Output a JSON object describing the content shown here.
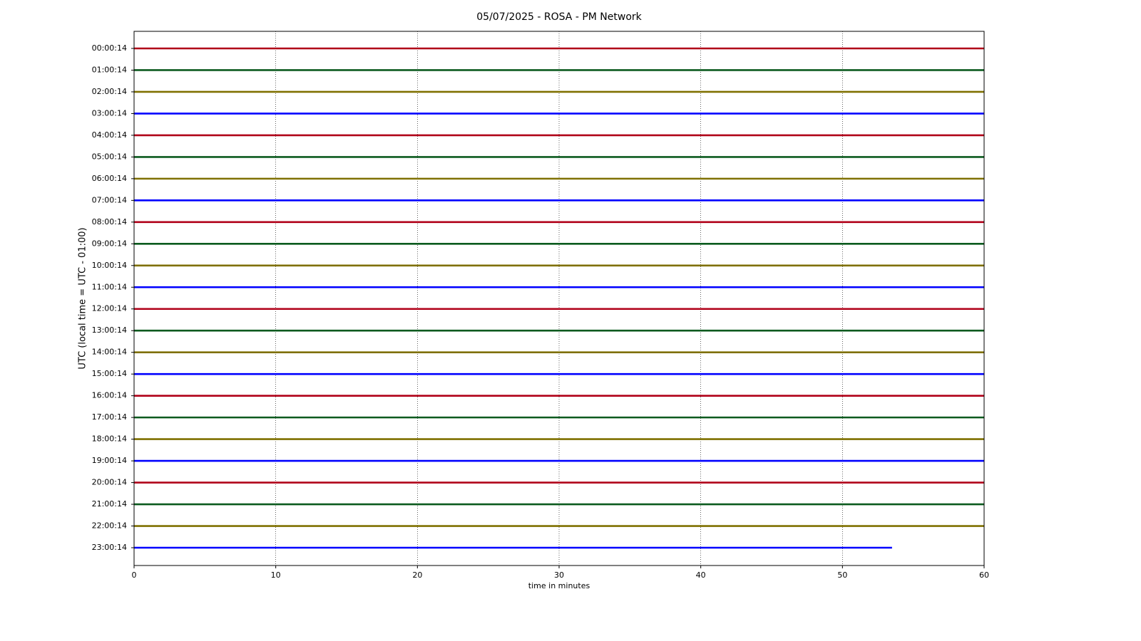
{
  "chart_data": {
    "type": "dayplot",
    "title": "05/07/2025 - ROSA - PM Network",
    "x_label": "time in minutes",
    "y_label": "UTC (local time = UTC - 01:00)",
    "xlim": [
      0,
      60
    ],
    "xticks": [
      0,
      10,
      20,
      30,
      40,
      50,
      60
    ],
    "grid": true,
    "traces": [
      {
        "label": "00:00:14",
        "color": "#b00018",
        "x": [
          0,
          60
        ]
      },
      {
        "label": "01:00:14",
        "color": "#0b5a1e",
        "x": [
          0,
          60
        ]
      },
      {
        "label": "02:00:14",
        "color": "#7f7000",
        "x": [
          0,
          60
        ]
      },
      {
        "label": "03:00:14",
        "color": "#0000ff",
        "x": [
          0,
          60
        ]
      },
      {
        "label": "04:00:14",
        "color": "#b00018",
        "x": [
          0,
          60
        ]
      },
      {
        "label": "05:00:14",
        "color": "#0b5a1e",
        "x": [
          0,
          60
        ]
      },
      {
        "label": "06:00:14",
        "color": "#7f7000",
        "x": [
          0,
          60
        ]
      },
      {
        "label": "07:00:14",
        "color": "#0000ff",
        "x": [
          0,
          60
        ]
      },
      {
        "label": "08:00:14",
        "color": "#b00018",
        "x": [
          0,
          60
        ]
      },
      {
        "label": "09:00:14",
        "color": "#0b5a1e",
        "x": [
          0,
          60
        ]
      },
      {
        "label": "10:00:14",
        "color": "#7f7000",
        "x": [
          0,
          60
        ]
      },
      {
        "label": "11:00:14",
        "color": "#0000ff",
        "x": [
          0,
          60
        ]
      },
      {
        "label": "12:00:14",
        "color": "#b00018",
        "x": [
          0,
          60
        ]
      },
      {
        "label": "13:00:14",
        "color": "#0b5a1e",
        "x": [
          0,
          60
        ]
      },
      {
        "label": "14:00:14",
        "color": "#7f7000",
        "x": [
          0,
          60
        ]
      },
      {
        "label": "15:00:14",
        "color": "#0000ff",
        "x": [
          0,
          60
        ]
      },
      {
        "label": "16:00:14",
        "color": "#b00018",
        "x": [
          0,
          60
        ]
      },
      {
        "label": "17:00:14",
        "color": "#0b5a1e",
        "x": [
          0,
          60
        ]
      },
      {
        "label": "18:00:14",
        "color": "#7f7000",
        "x": [
          0,
          60
        ]
      },
      {
        "label": "19:00:14",
        "color": "#0000ff",
        "x": [
          0,
          60
        ]
      },
      {
        "label": "20:00:14",
        "color": "#b00018",
        "x": [
          0,
          60
        ]
      },
      {
        "label": "21:00:14",
        "color": "#0b5a1e",
        "x": [
          0,
          60
        ]
      },
      {
        "label": "22:00:14",
        "color": "#7f7000",
        "x": [
          0,
          60
        ]
      },
      {
        "label": "23:00:14",
        "color": "#0000ff",
        "x": [
          0,
          53.5
        ]
      }
    ]
  }
}
